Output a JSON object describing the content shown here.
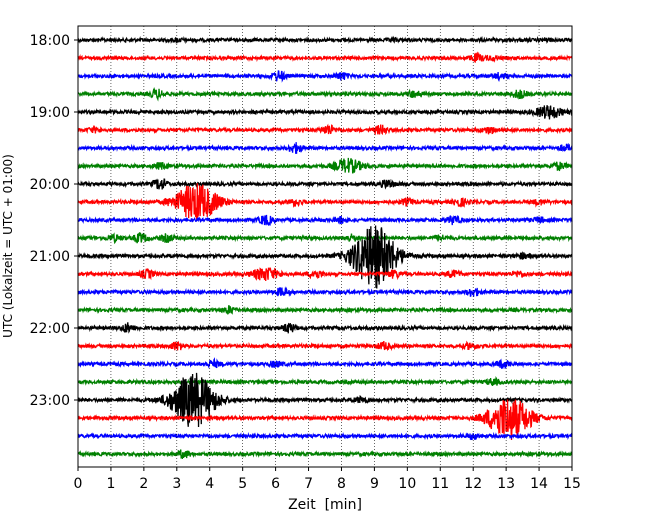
{
  "chart_data": {
    "type": "line",
    "title": "",
    "xlabel": "Zeit  [min]",
    "ylabel": "UTC (Lokalzeit = UTC + 01:00)",
    "xlim": [
      0,
      15
    ],
    "x_ticks": [
      "0",
      "1",
      "2",
      "3",
      "4",
      "5",
      "6",
      "7",
      "8",
      "9",
      "10",
      "11",
      "12",
      "13",
      "14",
      "15"
    ],
    "y_tick_labels": [
      "18:00",
      "19:00",
      "20:00",
      "21:00",
      "22:00",
      "23:00"
    ],
    "grid": "vertical dotted",
    "trace_interval_min": 15,
    "trace_colors": [
      "#000000",
      "#ff0000",
      "#0000ff",
      "#008000"
    ],
    "traces": [
      {
        "start": "18:00",
        "color": "#000000",
        "events": [
          {
            "t": 3.0,
            "amp": 0.15
          },
          {
            "t": 9.6,
            "amp": 0.1
          },
          {
            "t": 14.2,
            "amp": 0.12
          }
        ]
      },
      {
        "start": "18:15",
        "color": "#ff0000",
        "events": [
          {
            "t": 12.1,
            "amp": 0.45
          },
          {
            "t": 12.6,
            "amp": 0.25
          }
        ]
      },
      {
        "start": "18:30",
        "color": "#0000ff",
        "events": [
          {
            "t": 6.1,
            "amp": 0.6
          },
          {
            "t": 8.0,
            "amp": 0.45
          },
          {
            "t": 12.8,
            "amp": 0.35
          }
        ]
      },
      {
        "start": "18:45",
        "color": "#008000",
        "events": [
          {
            "t": 2.4,
            "amp": 0.55
          },
          {
            "t": 10.2,
            "amp": 0.4
          },
          {
            "t": 13.4,
            "amp": 0.5
          }
        ]
      },
      {
        "start": "19:00",
        "color": "#000000",
        "events": [
          {
            "t": 14.3,
            "amp": 0.8
          }
        ]
      },
      {
        "start": "19:15",
        "color": "#ff0000",
        "events": [
          {
            "t": 0.5,
            "amp": 0.3
          },
          {
            "t": 7.6,
            "amp": 0.6
          },
          {
            "t": 9.2,
            "amp": 0.55
          },
          {
            "t": 12.5,
            "amp": 0.4
          }
        ]
      },
      {
        "start": "19:30",
        "color": "#0000ff",
        "events": [
          {
            "t": 6.6,
            "amp": 0.6
          },
          {
            "t": 14.8,
            "amp": 0.35
          }
        ]
      },
      {
        "start": "19:45",
        "color": "#008000",
        "events": [
          {
            "t": 2.5,
            "amp": 0.35
          },
          {
            "t": 8.2,
            "amp": 0.9
          },
          {
            "t": 14.6,
            "amp": 0.45
          }
        ]
      },
      {
        "start": "20:00",
        "color": "#000000",
        "events": [
          {
            "t": 2.5,
            "amp": 0.7
          },
          {
            "t": 9.4,
            "amp": 0.5
          }
        ]
      },
      {
        "start": "20:15",
        "color": "#ff0000",
        "events": [
          {
            "t": 3.6,
            "amp": 2.4
          },
          {
            "t": 6.6,
            "amp": 0.4
          },
          {
            "t": 10.0,
            "amp": 0.4
          },
          {
            "t": 11.6,
            "amp": 0.5
          },
          {
            "t": 14.0,
            "amp": 0.3
          }
        ]
      },
      {
        "start": "20:30",
        "color": "#0000ff",
        "events": [
          {
            "t": 5.7,
            "amp": 0.6
          },
          {
            "t": 8.0,
            "amp": 0.35
          },
          {
            "t": 11.4,
            "amp": 0.5
          },
          {
            "t": 14.0,
            "amp": 0.3
          }
        ]
      },
      {
        "start": "20:45",
        "color": "#008000",
        "events": [
          {
            "t": 1.1,
            "amp": 0.4
          },
          {
            "t": 1.9,
            "amp": 0.6
          },
          {
            "t": 2.7,
            "amp": 0.45
          },
          {
            "t": 8.3,
            "amp": 0.4
          },
          {
            "t": 11.0,
            "amp": 0.3
          }
        ]
      },
      {
        "start": "21:00",
        "color": "#000000",
        "events": [
          {
            "t": 9.0,
            "amp": 4.2
          },
          {
            "t": 13.5,
            "amp": 0.3
          }
        ]
      },
      {
        "start": "21:15",
        "color": "#ff0000",
        "events": [
          {
            "t": 2.1,
            "amp": 0.5
          },
          {
            "t": 5.7,
            "amp": 0.8
          },
          {
            "t": 7.2,
            "amp": 0.5
          },
          {
            "t": 9.6,
            "amp": 0.45
          },
          {
            "t": 11.4,
            "amp": 0.4
          },
          {
            "t": 13.4,
            "amp": 0.35
          }
        ]
      },
      {
        "start": "21:30",
        "color": "#0000ff",
        "events": [
          {
            "t": 6.2,
            "amp": 0.5
          },
          {
            "t": 12.0,
            "amp": 0.5
          }
        ]
      },
      {
        "start": "21:45",
        "color": "#008000",
        "events": [
          {
            "t": 4.6,
            "amp": 0.45
          }
        ]
      },
      {
        "start": "22:00",
        "color": "#000000",
        "events": [
          {
            "t": 1.5,
            "amp": 0.55
          },
          {
            "t": 6.4,
            "amp": 0.55
          }
        ]
      },
      {
        "start": "22:15",
        "color": "#ff0000",
        "events": [
          {
            "t": 3.0,
            "amp": 0.5
          },
          {
            "t": 9.3,
            "amp": 0.45
          },
          {
            "t": 11.9,
            "amp": 0.35
          }
        ]
      },
      {
        "start": "22:30",
        "color": "#0000ff",
        "events": [
          {
            "t": 4.1,
            "amp": 0.45
          },
          {
            "t": 6.0,
            "amp": 0.35
          },
          {
            "t": 12.9,
            "amp": 0.45
          }
        ]
      },
      {
        "start": "22:45",
        "color": "#008000",
        "events": [
          {
            "t": 12.6,
            "amp": 0.4
          }
        ]
      },
      {
        "start": "23:00",
        "color": "#000000",
        "events": [
          {
            "t": 3.5,
            "amp": 3.6
          },
          {
            "t": 8.6,
            "amp": 0.35
          }
        ]
      },
      {
        "start": "23:15",
        "color": "#ff0000",
        "events": [
          {
            "t": 13.1,
            "amp": 2.8
          }
        ]
      },
      {
        "start": "23:30",
        "color": "#0000ff",
        "events": [
          {
            "t": 12.0,
            "amp": 0.35
          }
        ]
      },
      {
        "start": "23:45",
        "color": "#008000",
        "events": [
          {
            "t": 3.2,
            "amp": 0.45
          }
        ]
      }
    ]
  }
}
